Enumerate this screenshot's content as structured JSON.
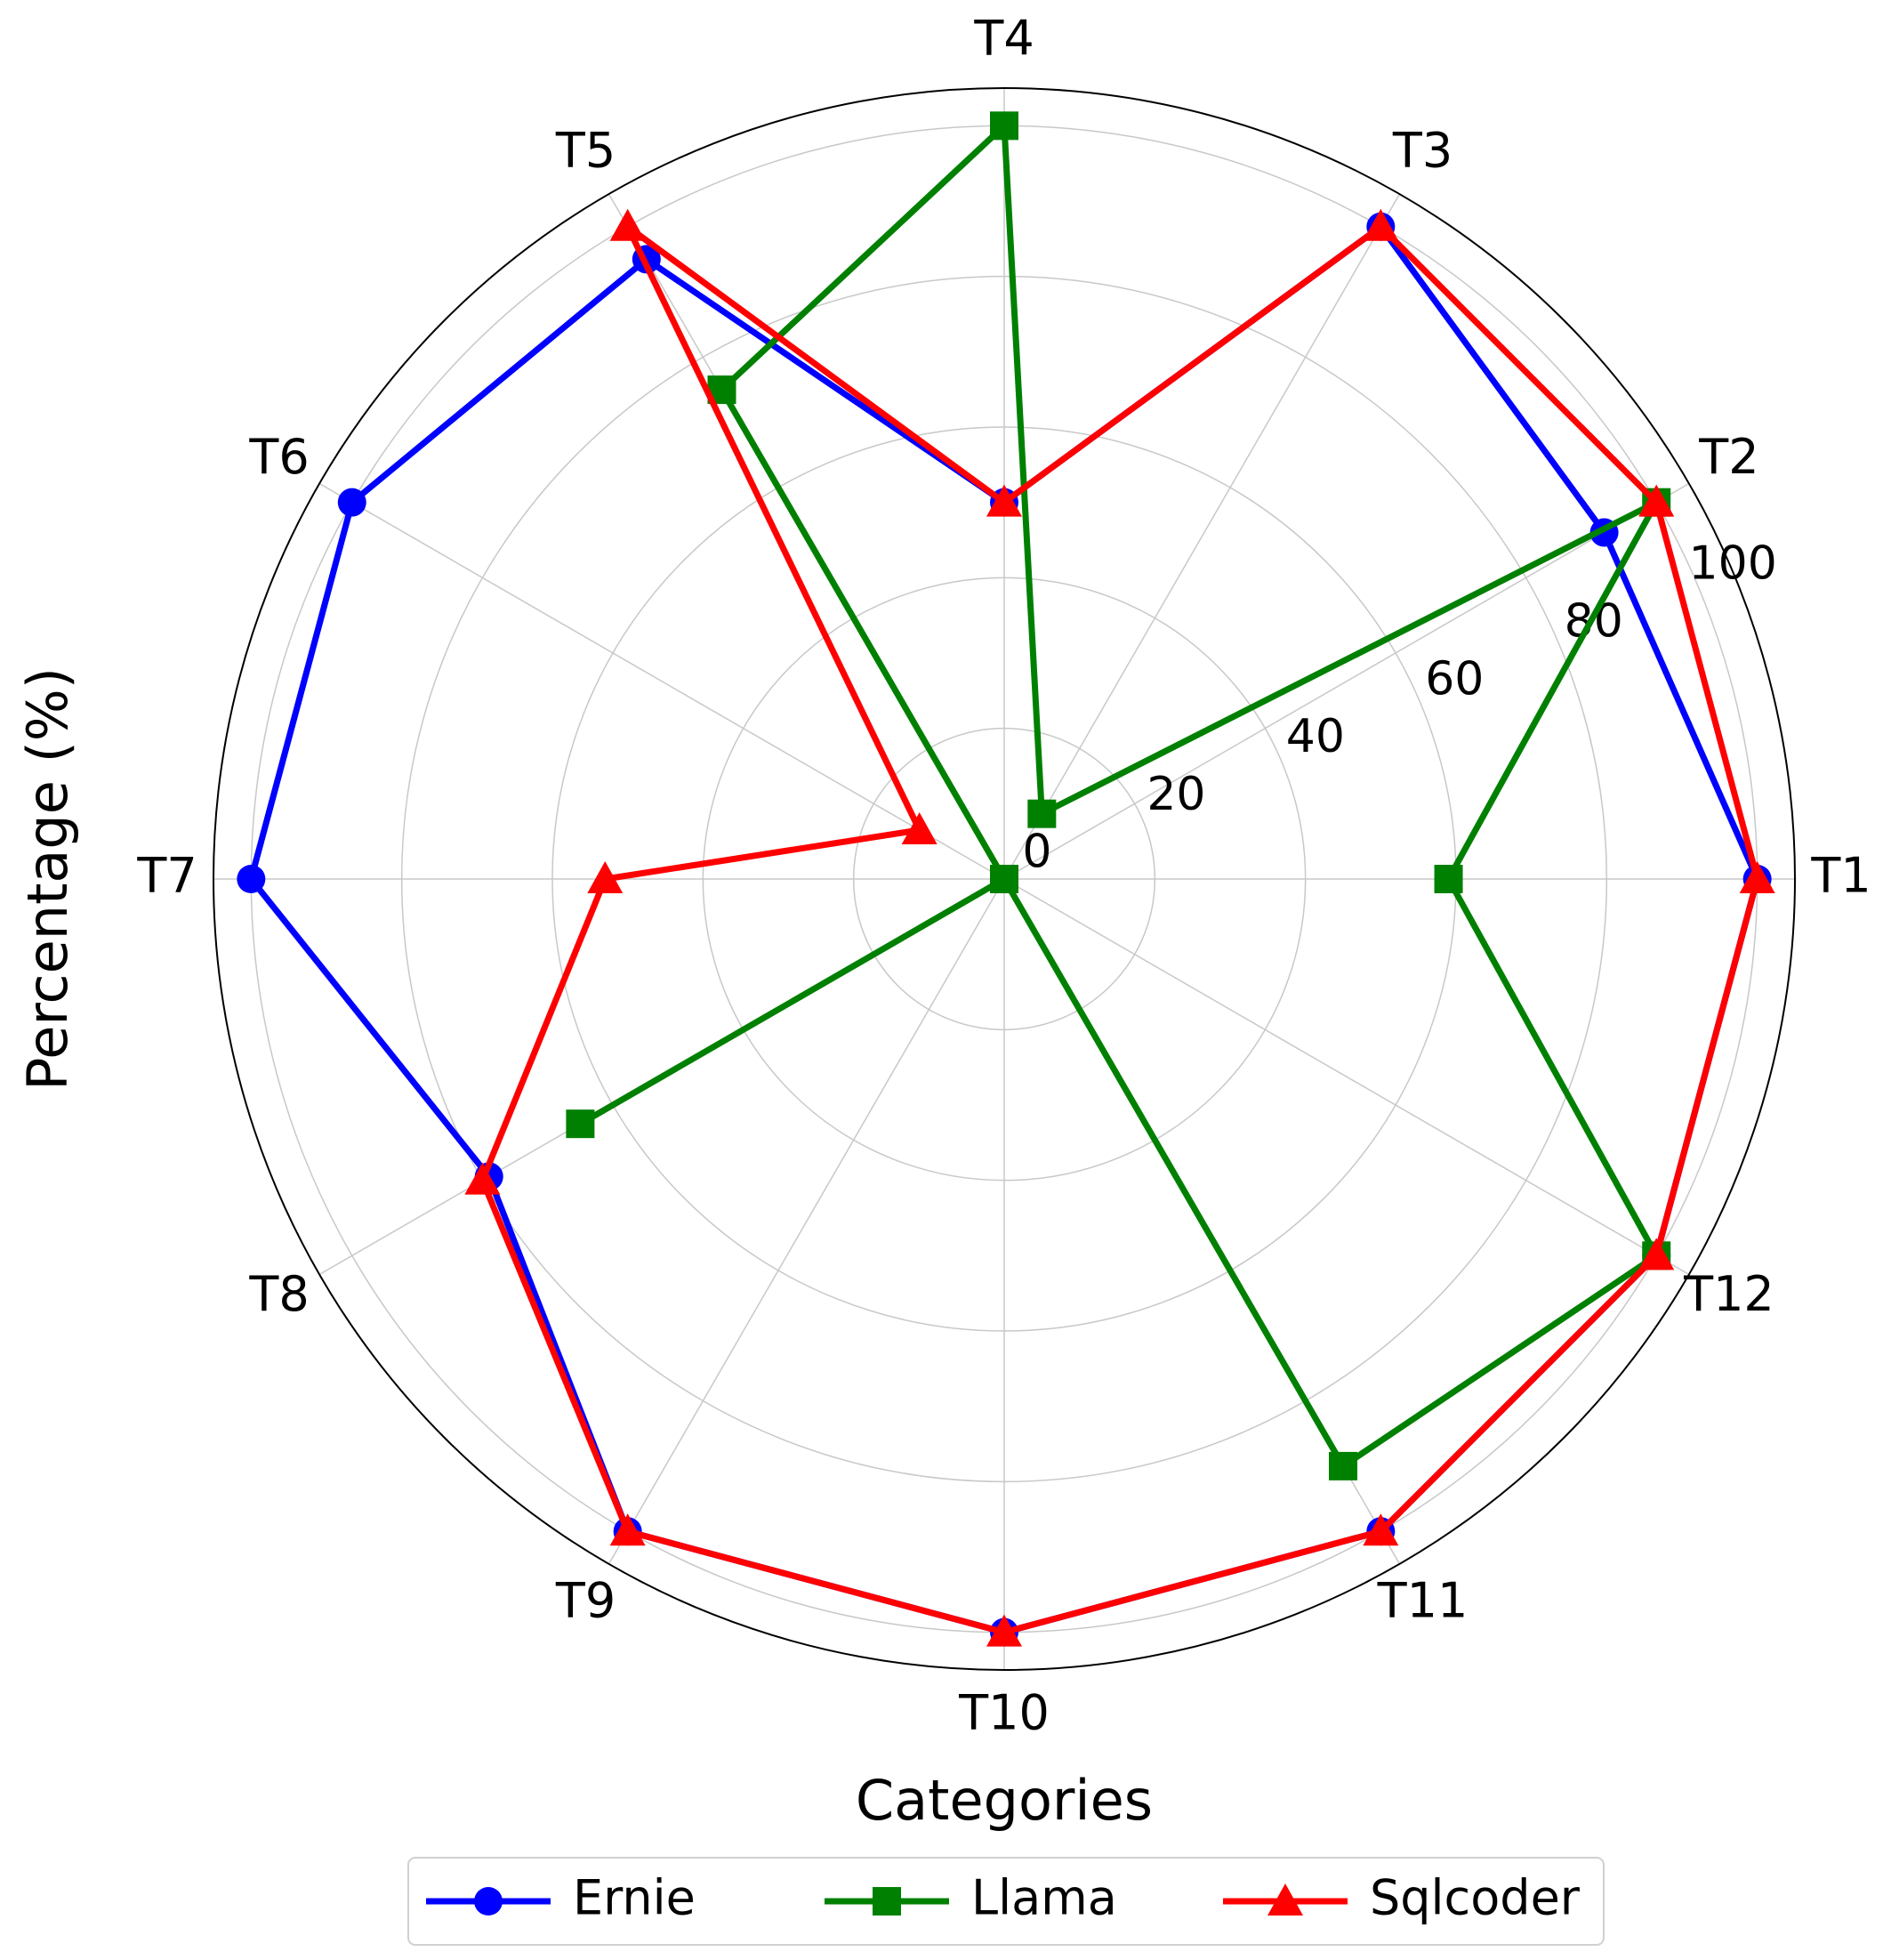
{
  "chart_data": {
    "type": "radar",
    "x_label": "Categories",
    "y_label": "Percentage (%)",
    "categories": [
      "T1",
      "T2",
      "T3",
      "T4",
      "T5",
      "T6",
      "T7",
      "T8",
      "T9",
      "T10",
      "T11",
      "T12"
    ],
    "series": [
      {
        "name": "Ernie",
        "color": "#0000ff",
        "marker": "circle",
        "values": [
          100,
          92,
          100,
          50,
          95,
          100,
          100,
          79,
          100,
          100,
          100,
          100
        ]
      },
      {
        "name": "Llama",
        "color": "#008000",
        "marker": "square",
        "values": [
          59,
          100,
          10,
          100,
          75,
          0,
          0,
          65,
          0,
          0,
          90,
          100
        ]
      },
      {
        "name": "Sqlcoder",
        "color": "#ff0000",
        "marker": "triangle",
        "values": [
          100,
          100,
          100,
          50,
          100,
          13,
          53,
          80,
          100,
          100,
          100,
          100
        ]
      }
    ],
    "ylim": [
      0,
      105
    ],
    "yticks": [
      0,
      20,
      40,
      60,
      80,
      100
    ],
    "grid": true,
    "legend": "bottom"
  }
}
